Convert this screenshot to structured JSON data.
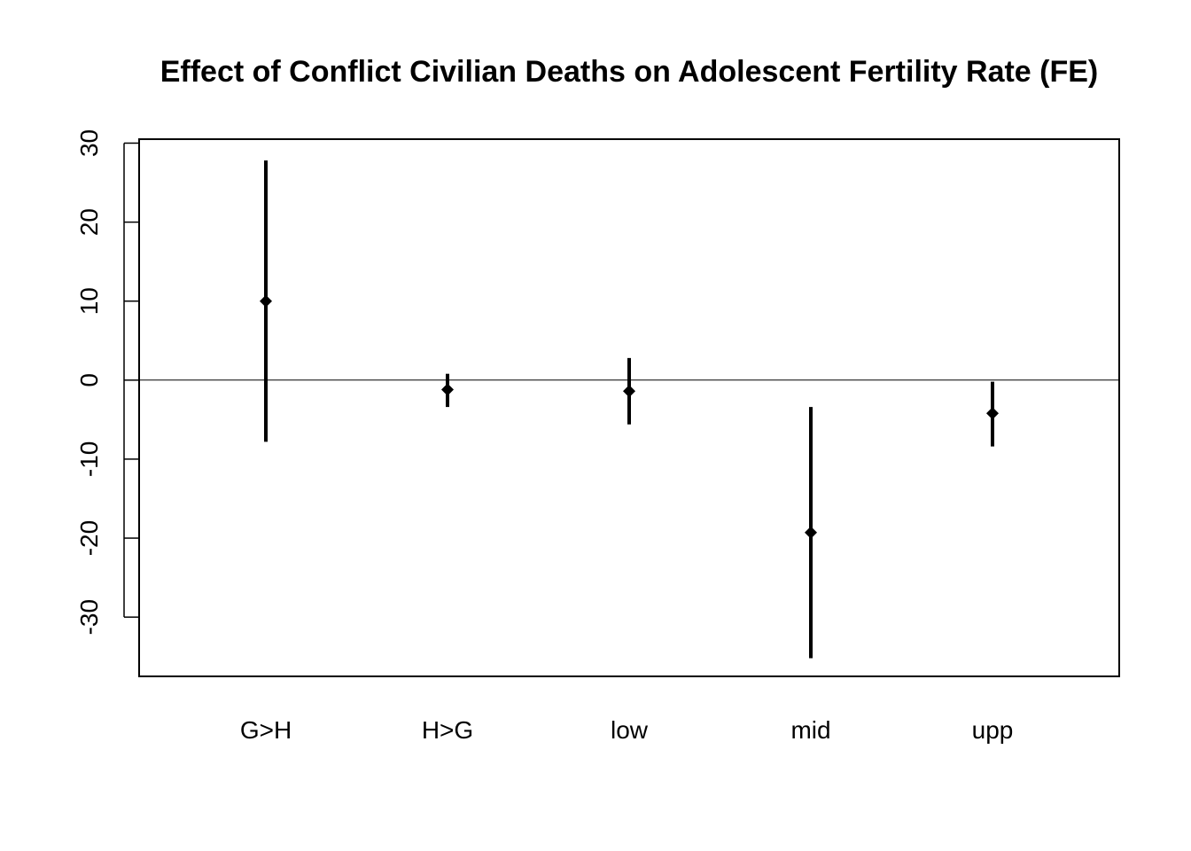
{
  "chart_data": {
    "type": "scatter",
    "title": "Effect of Conflict Civilian Deaths on Adolescent Fertility Rate (FE)",
    "xlabel": "",
    "ylabel": "",
    "categories": [
      "G>H",
      "H>G",
      "low",
      "mid",
      "upp"
    ],
    "estimates": [
      10.0,
      -1.2,
      -1.4,
      -19.3,
      -4.2
    ],
    "lower": [
      -7.8,
      -3.4,
      -5.6,
      -35.2,
      -8.4
    ],
    "upper": [
      27.8,
      0.8,
      2.8,
      -3.4,
      -0.2
    ],
    "ylim": [
      -37.5,
      30.5
    ],
    "yticks": [
      30,
      20,
      10,
      0,
      -10,
      -20,
      -30
    ],
    "yticks_labels": [
      "30",
      "20",
      "10",
      "0",
      "-10",
      "-20",
      "-30"
    ],
    "reference_line": 0,
    "grid": false,
    "colors": {
      "marks": "#000000",
      "background": "#ffffff"
    }
  }
}
